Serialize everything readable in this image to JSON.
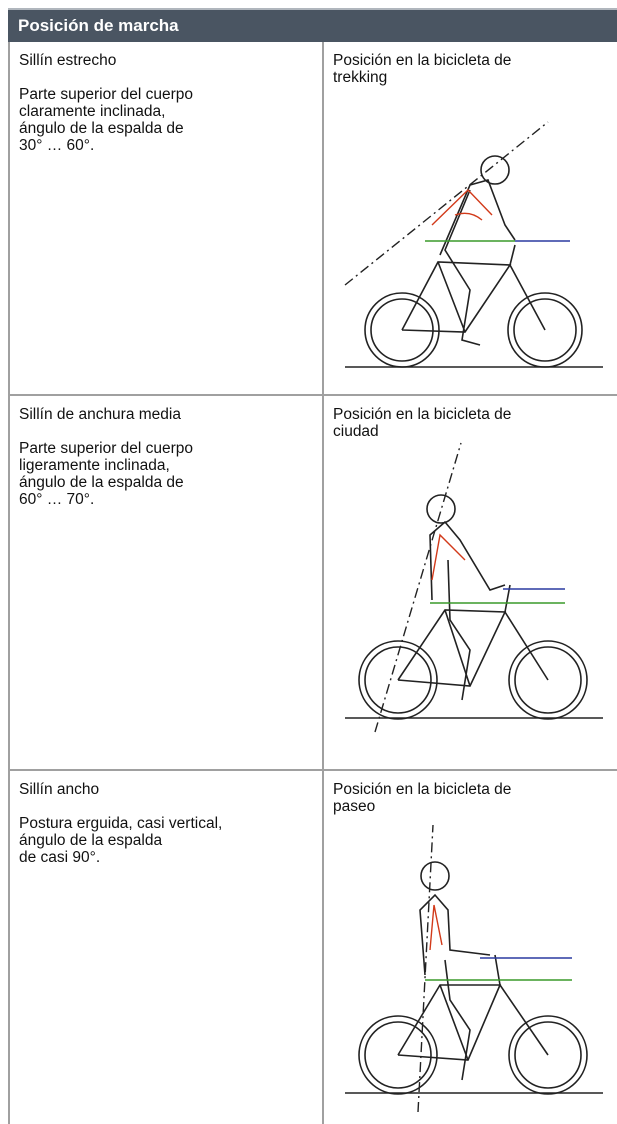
{
  "header": {
    "title": "Posición de marcha"
  },
  "rows": [
    {
      "left": {
        "title": "Sillín estrecho",
        "description": [
          "Parte superior del cuerpo",
          "claramente inclinada,",
          "ángulo de la espalda de",
          "30° … 60°."
        ]
      },
      "right": {
        "caption": [
          "Posición en la bicicleta de",
          "trekking"
        ]
      }
    },
    {
      "left": {
        "title": "Sillín de anchura media",
        "description": [
          "Parte superior del cuerpo",
          "ligeramente inclinada,",
          "ángulo de la espalda de",
          "60° … 70°."
        ]
      },
      "right": {
        "caption": [
          "Posición en la bicicleta de",
          "ciudad"
        ]
      }
    },
    {
      "left": {
        "title": "Sillín ancho",
        "description": [
          "Postura erguida, casi vertical,",
          "ángulo de la espalda",
          "de casi 90°."
        ]
      },
      "right": {
        "caption": [
          "Posición en la bicicleta de",
          "paseo"
        ]
      }
    }
  ]
}
